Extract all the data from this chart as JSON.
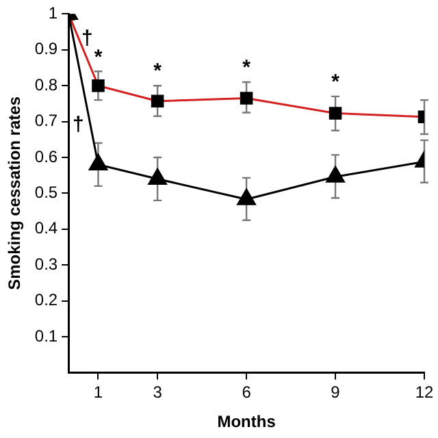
{
  "chart_data": {
    "type": "line",
    "xlabel": "Months",
    "ylabel": "Smoking cessation rates",
    "x": [
      0,
      1,
      3,
      6,
      9,
      12
    ],
    "series": [
      {
        "color": "#d42020",
        "marker": "square",
        "values": [
          1,
          0.8,
          0.757,
          0.765,
          0.723,
          0.713
        ],
        "errors": [
          null,
          [
            0.76,
            0.84
          ],
          [
            0.715,
            0.8
          ],
          [
            0.725,
            0.81
          ],
          [
            0.675,
            0.77
          ],
          [
            0.665,
            0.76
          ]
        ]
      },
      {
        "color": "#000000",
        "marker": "triangle",
        "values": [
          1,
          0.58,
          0.54,
          0.483,
          0.546,
          0.588
        ],
        "errors": [
          null,
          [
            0.52,
            0.64
          ],
          [
            0.48,
            0.6
          ],
          [
            0.425,
            0.543
          ],
          [
            0.487,
            0.607
          ],
          [
            0.53,
            0.648
          ]
        ]
      }
    ],
    "xlim": [
      0,
      12
    ],
    "xticks": [
      1,
      3,
      6,
      9,
      12
    ],
    "ylim": [
      0,
      1
    ],
    "yticks": [
      0.1,
      0.2,
      0.3,
      0.4,
      0.5,
      0.6,
      0.7,
      0.8,
      0.9,
      1
    ],
    "grid": false,
    "legend": false,
    "line_style": "solid",
    "annotations": [
      {
        "text": "*",
        "x": 1,
        "y": 0.8
      },
      {
        "text": "*",
        "x": 3,
        "y": 0.757
      },
      {
        "text": "*",
        "x": 6,
        "y": 0.765
      },
      {
        "text": "*",
        "x": 9,
        "y": 0.723
      },
      {
        "text": "†",
        "x": 0.35,
        "y": 0.93
      },
      {
        "text": "†",
        "x": 0.74,
        "y": 0.69
      }
    ]
  }
}
